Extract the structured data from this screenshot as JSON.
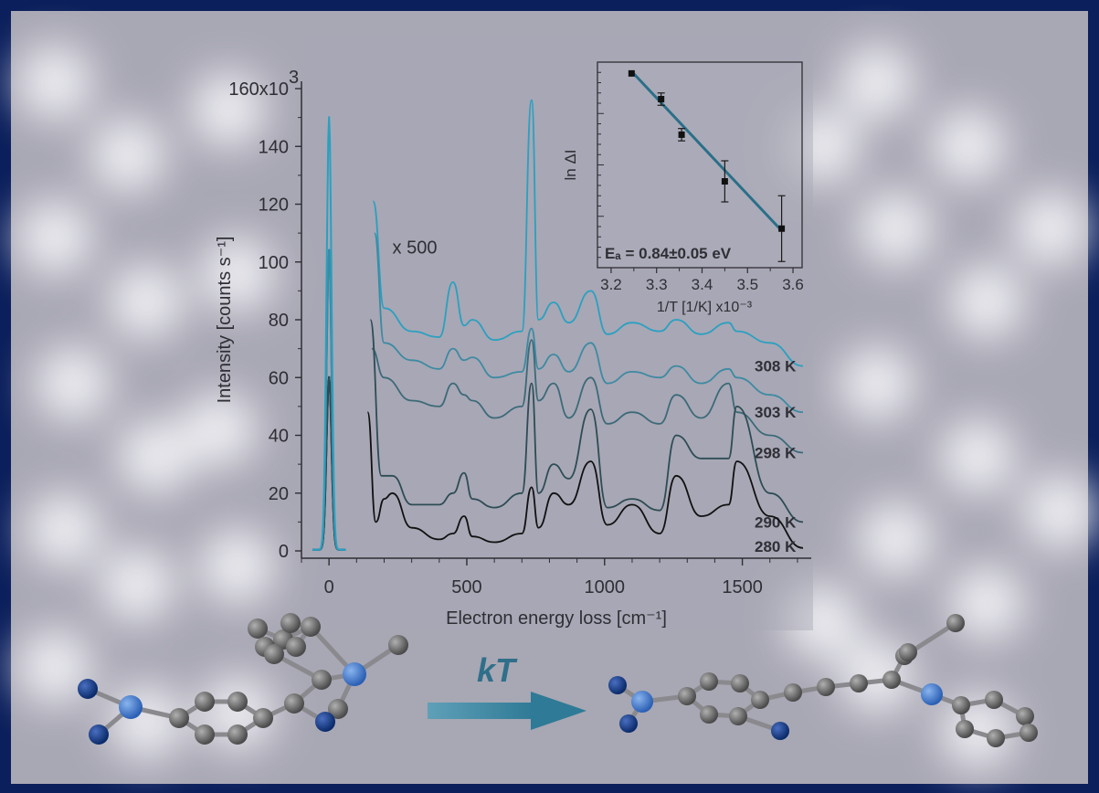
{
  "colors": {
    "frame": "#0b1f5c",
    "background": "#a7a6b2",
    "axis": "#2e2e34",
    "teal_light": "#2aa0c0",
    "teal_mid": "#3d8aa2",
    "teal_dark": "#3c6a78",
    "slate": "#2d4c55",
    "black": "#111111",
    "fit_line": "#2a6f88",
    "atom_gray": "#6e6e6e",
    "atom_blue_light": "#3c7fd6",
    "atom_blue_dark": "#0e3a8a",
    "arrow": "#3f8aa4"
  },
  "chart_data": [
    {
      "type": "line",
      "ylabel": "Intensity [counts s⁻¹]",
      "xlabel": "Electron energy loss [cm⁻¹]",
      "y_multiplier": "x10³",
      "xlim": [
        -100,
        1750
      ],
      "ylim": [
        0,
        160
      ],
      "x_ticks": [
        0,
        500,
        1000,
        1500
      ],
      "y_ticks": [
        0,
        20,
        40,
        60,
        80,
        100,
        120,
        140,
        160
      ],
      "y_tick_labels": [
        "0",
        "20",
        "40",
        "60",
        "80",
        "100",
        "120",
        "140",
        "160x10"
      ],
      "y_tick_superscript": "3",
      "scale_annotation": "x 500",
      "elastic_peak": {
        "x": 0,
        "heights": {
          "308 K": 150,
          "303 K": 104,
          "298 K": 104,
          "290 K": 60,
          "280 K": 60
        }
      },
      "peak_positions_cm1": [
        170,
        230,
        450,
        490,
        735,
        815,
        870,
        950,
        1010,
        1100,
        1260,
        1350,
        1450,
        1480,
        1600
      ],
      "series": [
        {
          "name": "308 K",
          "color_key": "teal_light",
          "points": [
            [
              160,
              121
            ],
            [
              200,
              84
            ],
            [
              300,
              76
            ],
            [
              400,
              74
            ],
            [
              450,
              93
            ],
            [
              490,
              78
            ],
            [
              520,
              80
            ],
            [
              600,
              73
            ],
            [
              700,
              76
            ],
            [
              735,
              156
            ],
            [
              760,
              80
            ],
            [
              815,
              86
            ],
            [
              870,
              79
            ],
            [
              950,
              90
            ],
            [
              1010,
              75
            ],
            [
              1100,
              79
            ],
            [
              1200,
              76
            ],
            [
              1260,
              80
            ],
            [
              1350,
              75
            ],
            [
              1450,
              79
            ],
            [
              1480,
              76
            ],
            [
              1600,
              72
            ],
            [
              1720,
              64
            ]
          ]
        },
        {
          "name": "303 K",
          "color_key": "teal_mid",
          "points": [
            [
              165,
              110
            ],
            [
              200,
              72
            ],
            [
              300,
              66
            ],
            [
              400,
              63
            ],
            [
              450,
              70
            ],
            [
              490,
              66
            ],
            [
              520,
              67
            ],
            [
              600,
              60
            ],
            [
              700,
              62
            ],
            [
              735,
              77
            ],
            [
              760,
              63
            ],
            [
              815,
              68
            ],
            [
              870,
              62
            ],
            [
              950,
              72
            ],
            [
              1010,
              58
            ],
            [
              1100,
              62
            ],
            [
              1200,
              60
            ],
            [
              1260,
              64
            ],
            [
              1350,
              58
            ],
            [
              1450,
              63
            ],
            [
              1480,
              60
            ],
            [
              1600,
              54
            ],
            [
              1720,
              48
            ]
          ]
        },
        {
          "name": "298 K",
          "color_key": "teal_dark",
          "points": [
            [
              155,
              70
            ],
            [
              200,
              60
            ],
            [
              300,
              52
            ],
            [
              400,
              50
            ],
            [
              450,
              58
            ],
            [
              490,
              54
            ],
            [
              520,
              52
            ],
            [
              600,
              46
            ],
            [
              700,
              50
            ],
            [
              735,
              73
            ],
            [
              760,
              52
            ],
            [
              815,
              58
            ],
            [
              870,
              46
            ],
            [
              950,
              60
            ],
            [
              1010,
              44
            ],
            [
              1100,
              48
            ],
            [
              1200,
              44
            ],
            [
              1260,
              54
            ],
            [
              1350,
              46
            ],
            [
              1450,
              58
            ],
            [
              1480,
              48
            ],
            [
              1600,
              40
            ],
            [
              1720,
              34
            ]
          ]
        },
        {
          "name": "290 K",
          "color_key": "slate",
          "points": [
            [
              150,
              80
            ],
            [
              190,
              26
            ],
            [
              230,
              26
            ],
            [
              300,
              16
            ],
            [
              400,
              16
            ],
            [
              450,
              20
            ],
            [
              490,
              27
            ],
            [
              520,
              18
            ],
            [
              600,
              15
            ],
            [
              700,
              20
            ],
            [
              735,
              58
            ],
            [
              760,
              20
            ],
            [
              815,
              30
            ],
            [
              870,
              25
            ],
            [
              950,
              49
            ],
            [
              1010,
              15
            ],
            [
              1100,
              18
            ],
            [
              1200,
              14
            ],
            [
              1260,
              40
            ],
            [
              1350,
              32
            ],
            [
              1450,
              32
            ],
            [
              1480,
              50
            ],
            [
              1600,
              20
            ],
            [
              1720,
              10
            ]
          ]
        },
        {
          "name": "280 K",
          "color_key": "black",
          "points": [
            [
              140,
              48
            ],
            [
              170,
              10
            ],
            [
              200,
              18
            ],
            [
              230,
              20
            ],
            [
              300,
              8
            ],
            [
              400,
              4
            ],
            [
              450,
              6
            ],
            [
              490,
              12
            ],
            [
              520,
              5
            ],
            [
              600,
              3
            ],
            [
              700,
              6
            ],
            [
              735,
              22
            ],
            [
              760,
              8
            ],
            [
              815,
              20
            ],
            [
              870,
              16
            ],
            [
              950,
              31
            ],
            [
              1010,
              9
            ],
            [
              1100,
              16
            ],
            [
              1200,
              6
            ],
            [
              1260,
              26
            ],
            [
              1350,
              12
            ],
            [
              1450,
              16
            ],
            [
              1480,
              31
            ],
            [
              1600,
              12
            ],
            [
              1720,
              1
            ]
          ]
        }
      ]
    },
    {
      "type": "scatter",
      "xlabel": "1/T [1/K] x10⁻³",
      "ylabel": "ln ΔI",
      "xlim": [
        3.17,
        3.62
      ],
      "ylim": [
        0,
        1
      ],
      "x_ticks": [
        3.2,
        3.3,
        3.4,
        3.5,
        3.6
      ],
      "x_tick_labels": [
        "3.2",
        "3.3",
        "3.4",
        "3.5",
        "3.6"
      ],
      "annotation": "Eₐ = 0.84±0.05 eV",
      "points": [
        {
          "x": 3.245,
          "y": 0.945,
          "err": 0.0
        },
        {
          "x": 3.31,
          "y": 0.82,
          "err": 0.03
        },
        {
          "x": 3.355,
          "y": 0.647,
          "err": 0.03
        },
        {
          "x": 3.45,
          "y": 0.42,
          "err": 0.1
        },
        {
          "x": 3.575,
          "y": 0.19,
          "err": 0.16
        }
      ],
      "fit_line": [
        [
          3.245,
          0.955
        ],
        [
          3.575,
          0.18
        ]
      ]
    }
  ],
  "reaction": {
    "arrow_label": "kT"
  }
}
